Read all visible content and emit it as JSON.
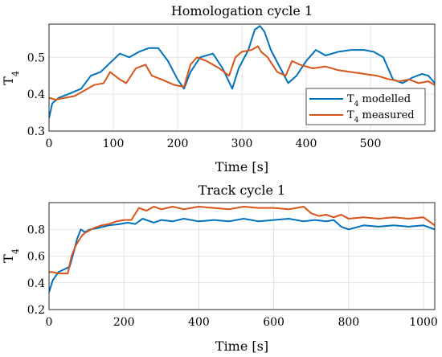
{
  "chart_data": [
    {
      "type": "line",
      "title": "Homologation cycle 1",
      "xlabel": "Time [s]",
      "ylabel": "T_4",
      "xlim": [
        0,
        600
      ],
      "ylim": [
        0.3,
        0.59
      ],
      "xticks": [
        0,
        100,
        200,
        300,
        400,
        500
      ],
      "yticks": [
        0.3,
        0.4,
        0.5
      ],
      "grid": true,
      "legend": "bottom-right",
      "series": [
        {
          "name": "T_4 modelled",
          "color": "#0072BD",
          "x": [
            0,
            5,
            15,
            30,
            50,
            65,
            80,
            95,
            110,
            125,
            140,
            155,
            170,
            185,
            200,
            210,
            220,
            235,
            255,
            270,
            285,
            295,
            310,
            320,
            328,
            335,
            345,
            360,
            372,
            385,
            400,
            415,
            430,
            450,
            470,
            490,
            505,
            520,
            535,
            550,
            565,
            580,
            590,
            600
          ],
          "y": [
            0.335,
            0.375,
            0.39,
            0.4,
            0.415,
            0.45,
            0.46,
            0.485,
            0.51,
            0.5,
            0.515,
            0.525,
            0.525,
            0.49,
            0.44,
            0.415,
            0.46,
            0.5,
            0.51,
            0.47,
            0.415,
            0.47,
            0.52,
            0.575,
            0.585,
            0.57,
            0.52,
            0.47,
            0.43,
            0.45,
            0.49,
            0.52,
            0.505,
            0.515,
            0.52,
            0.52,
            0.515,
            0.5,
            0.44,
            0.43,
            0.445,
            0.455,
            0.45,
            0.43
          ]
        },
        {
          "name": "T_4 measured",
          "color": "#D95319",
          "x": [
            0,
            10,
            25,
            40,
            55,
            70,
            85,
            95,
            110,
            120,
            135,
            150,
            160,
            175,
            195,
            210,
            220,
            230,
            245,
            265,
            280,
            290,
            300,
            315,
            325,
            330,
            340,
            355,
            368,
            378,
            390,
            410,
            430,
            450,
            470,
            490,
            510,
            530,
            545,
            560,
            575,
            590,
            600
          ],
          "y": [
            0.39,
            0.385,
            0.39,
            0.395,
            0.41,
            0.425,
            0.43,
            0.46,
            0.44,
            0.43,
            0.47,
            0.48,
            0.45,
            0.44,
            0.425,
            0.42,
            0.48,
            0.5,
            0.49,
            0.47,
            0.45,
            0.5,
            0.515,
            0.52,
            0.53,
            0.515,
            0.5,
            0.46,
            0.45,
            0.49,
            0.48,
            0.47,
            0.475,
            0.465,
            0.46,
            0.455,
            0.45,
            0.44,
            0.435,
            0.44,
            0.43,
            0.435,
            0.425
          ]
        }
      ]
    },
    {
      "type": "line",
      "title": "Track cycle 1",
      "xlabel": "Time [s]",
      "ylabel": "T_4",
      "xlim": [
        0,
        1030
      ],
      "ylim": [
        0.2,
        1.0
      ],
      "xticks": [
        0,
        200,
        400,
        600,
        800,
        1000
      ],
      "yticks": [
        0.2,
        0.4,
        0.6,
        0.8
      ],
      "grid": true,
      "series": [
        {
          "name": "T_4 modelled",
          "color": "#0072BD",
          "x": [
            0,
            10,
            25,
            40,
            55,
            65,
            75,
            85,
            95,
            110,
            130,
            160,
            190,
            210,
            230,
            250,
            280,
            300,
            330,
            360,
            400,
            440,
            480,
            520,
            560,
            600,
            640,
            680,
            710,
            740,
            760,
            780,
            800,
            840,
            880,
            920,
            960,
            1000,
            1030
          ],
          "y": [
            0.33,
            0.42,
            0.48,
            0.5,
            0.52,
            0.62,
            0.73,
            0.8,
            0.78,
            0.8,
            0.81,
            0.83,
            0.84,
            0.85,
            0.84,
            0.88,
            0.85,
            0.87,
            0.86,
            0.88,
            0.86,
            0.87,
            0.86,
            0.88,
            0.86,
            0.87,
            0.88,
            0.86,
            0.87,
            0.86,
            0.87,
            0.82,
            0.8,
            0.83,
            0.82,
            0.83,
            0.82,
            0.83,
            0.8
          ]
        },
        {
          "name": "T_4 measured",
          "color": "#D95319",
          "x": [
            0,
            10,
            25,
            40,
            50,
            60,
            70,
            80,
            90,
            100,
            120,
            140,
            160,
            180,
            200,
            220,
            240,
            260,
            280,
            300,
            330,
            360,
            400,
            440,
            480,
            520,
            560,
            600,
            640,
            680,
            700,
            720,
            740,
            760,
            780,
            800,
            840,
            880,
            920,
            960,
            1000,
            1030
          ],
          "y": [
            0.48,
            0.48,
            0.47,
            0.47,
            0.47,
            0.6,
            0.67,
            0.72,
            0.76,
            0.78,
            0.81,
            0.83,
            0.84,
            0.86,
            0.87,
            0.87,
            0.96,
            0.94,
            0.97,
            0.95,
            0.97,
            0.95,
            0.97,
            0.96,
            0.95,
            0.97,
            0.96,
            0.96,
            0.95,
            0.97,
            0.92,
            0.9,
            0.91,
            0.89,
            0.91,
            0.88,
            0.89,
            0.88,
            0.89,
            0.88,
            0.89,
            0.83
          ]
        }
      ]
    }
  ],
  "legend": {
    "entries": [
      "T_4 modelled",
      "T_4 measured"
    ]
  }
}
